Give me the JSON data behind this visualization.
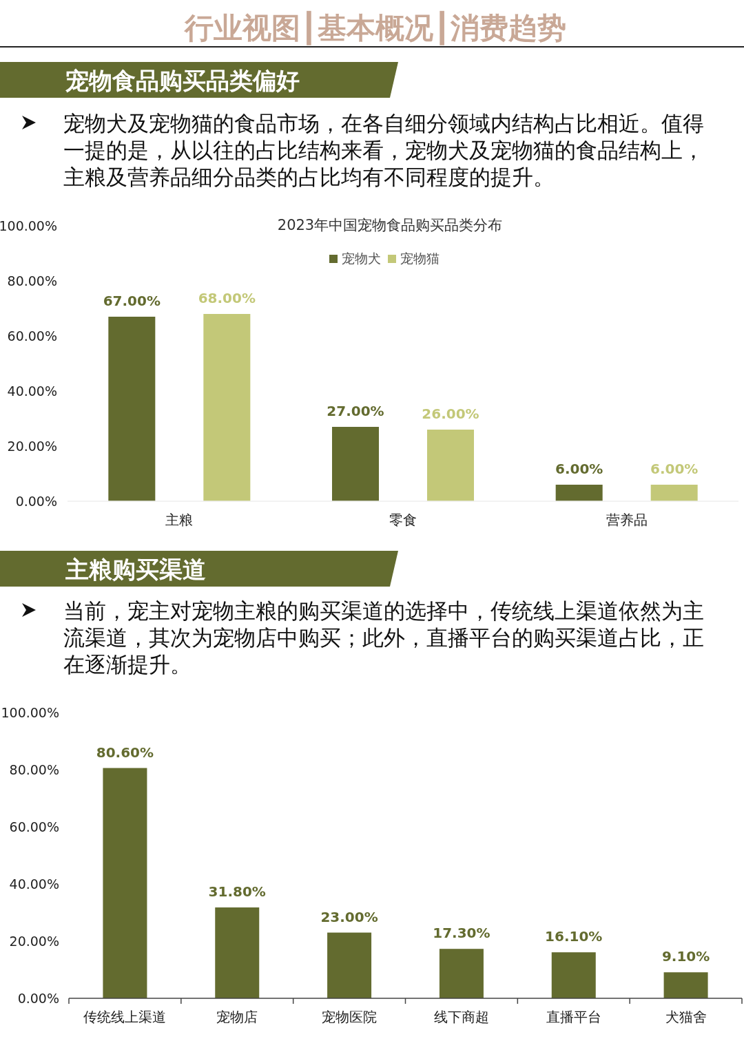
{
  "chart_data": [
    {
      "type": "bar",
      "title": "2023年中国宠物食品购买品类分布",
      "annotations": [
        "行业视图┃基本概况┃消费趋势",
        "宠物食品购买品类偏好",
        "宠物犬及宠物猫的食品市场，在各自细分领域内结构占比相近。值得一提的是，从以往的占比结构来看，宠物犬及宠物猫的食品结构上，主粮及营养品细分品类的占比均有不同程度的提升。"
      ],
      "categories": [
        "主粮",
        "零食",
        "营养品"
      ],
      "series": [
        {
          "name": "宠物犬",
          "color": "#636b2f",
          "values": [
            67,
            27,
            6
          ],
          "value_labels": [
            "67.00%",
            "27.00%",
            "6.00%"
          ]
        },
        {
          "name": "宠物猫",
          "color": "#c3c878",
          "values": [
            68,
            26,
            6
          ],
          "value_labels": [
            "68.00%",
            "26.00%",
            "6.00%"
          ]
        }
      ],
      "ylim": [
        0,
        100
      ],
      "yticks": [
        {
          "value": 0,
          "label": "0.00%"
        },
        {
          "value": 20,
          "label": "20.00%"
        },
        {
          "value": 40,
          "label": "40.00%"
        },
        {
          "value": 60,
          "label": "60.00%"
        },
        {
          "value": 80,
          "label": "80.00%"
        },
        {
          "value": 100,
          "label": "100.00%"
        }
      ],
      "legend": "top",
      "grid": false
    },
    {
      "type": "bar",
      "title": "主粮购买渠道",
      "subtitle": "当前，宠主对宠物主粮的购买渠道的选择中，传统线上渠道依然为主流渠道，其次为宠物店中购买；此外，直播平台的购买渠道占比，正在逐渐提升。",
      "categories": [
        "传统线上渠道",
        "宠物店",
        "宠物医院",
        "线下商超",
        "直播平台",
        "犬猫舍"
      ],
      "series": [
        {
          "color": "#636b2f",
          "values": [
            80.6,
            31.8,
            23.0,
            17.3,
            16.1,
            9.1
          ],
          "value_labels": [
            "80.60%",
            "31.80%",
            "23.00%",
            "17.30%",
            "16.10%",
            "9.10%"
          ]
        }
      ],
      "ylim": [
        0,
        100
      ],
      "yticks": [
        {
          "value": 0,
          "label": "0.00%"
        },
        {
          "value": 20,
          "label": "20.00%"
        },
        {
          "value": 40,
          "label": "40.00%"
        },
        {
          "value": 60,
          "label": "60.00%"
        },
        {
          "value": 80,
          "label": "80.00%"
        },
        {
          "value": 100,
          "label": "100.00%"
        }
      ],
      "grid": false
    }
  ]
}
